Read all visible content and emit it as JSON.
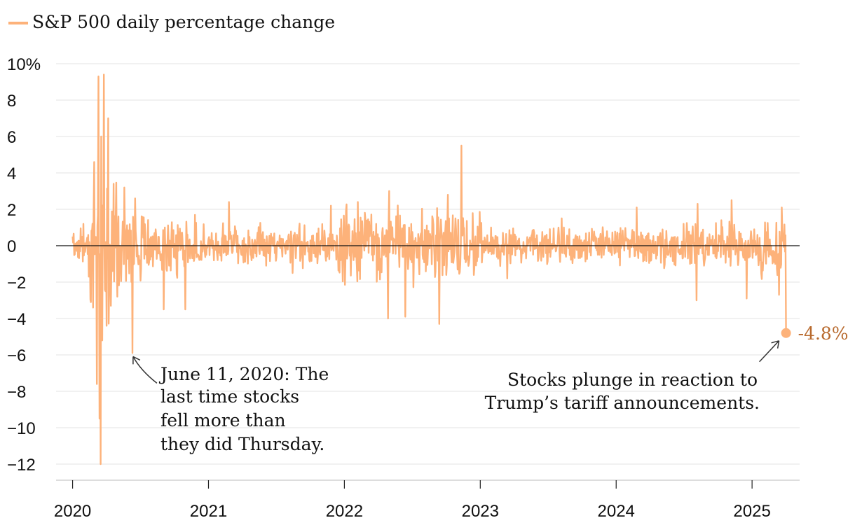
{
  "chart_data": {
    "type": "line",
    "legend": {
      "label": "S&P 500 daily percentage change",
      "color": "#fdb27a",
      "placement": "top-left"
    },
    "series": [
      {
        "name": "S&P 500 daily percentage change",
        "color": "#fdb27a",
        "anchors": [
          {
            "x": 2020.0,
            "y": 0.5
          },
          {
            "x": 2020.08,
            "y": 1.2
          },
          {
            "x": 2020.12,
            "y": -1.7
          },
          {
            "x": 2020.15,
            "y": -3.4
          },
          {
            "x": 2020.16,
            "y": 4.6
          },
          {
            "x": 2020.18,
            "y": -7.6
          },
          {
            "x": 2020.19,
            "y": 9.3
          },
          {
            "x": 2020.2,
            "y": -9.5
          },
          {
            "x": 2020.205,
            "y": -12.0
          },
          {
            "x": 2020.21,
            "y": 6.0
          },
          {
            "x": 2020.22,
            "y": -5.2
          },
          {
            "x": 2020.23,
            "y": 9.4
          },
          {
            "x": 2020.25,
            "y": -4.4
          },
          {
            "x": 2020.26,
            "y": 7.0
          },
          {
            "x": 2020.28,
            "y": -3.3
          },
          {
            "x": 2020.3,
            "y": 3.4
          },
          {
            "x": 2020.33,
            "y": -2.8
          },
          {
            "x": 2020.38,
            "y": 3.2
          },
          {
            "x": 2020.44,
            "y": -5.9
          },
          {
            "x": 2020.46,
            "y": 2.6
          },
          {
            "x": 2020.67,
            "y": -3.5
          },
          {
            "x": 2020.83,
            "y": -3.5
          },
          {
            "x": 2021.15,
            "y": 2.4
          },
          {
            "x": 2021.62,
            "y": -1.5
          },
          {
            "x": 2021.9,
            "y": 2.2
          },
          {
            "x": 2022.1,
            "y": 2.4
          },
          {
            "x": 2022.32,
            "y": -4.0
          },
          {
            "x": 2022.33,
            "y": 3.0
          },
          {
            "x": 2022.45,
            "y": -3.9
          },
          {
            "x": 2022.7,
            "y": -4.3
          },
          {
            "x": 2022.76,
            "y": 2.8
          },
          {
            "x": 2022.86,
            "y": 5.5
          },
          {
            "x": 2023.2,
            "y": -1.8
          },
          {
            "x": 2023.6,
            "y": 1.5
          },
          {
            "x": 2024.15,
            "y": 2.1
          },
          {
            "x": 2024.59,
            "y": -3.0
          },
          {
            "x": 2024.6,
            "y": 2.3
          },
          {
            "x": 2024.85,
            "y": 2.5
          },
          {
            "x": 2024.96,
            "y": -2.9
          },
          {
            "x": 2025.2,
            "y": -2.7
          },
          {
            "x": 2025.22,
            "y": 2.1
          },
          {
            "x": 2025.25,
            "y": -4.8
          }
        ]
      }
    ],
    "x_range": [
      2019.93,
      2025.35
    ],
    "ylim": [
      -12.6,
      10
    ],
    "x_ticks": [
      {
        "value": 2020,
        "label": "2020"
      },
      {
        "value": 2021,
        "label": "2021"
      },
      {
        "value": 2022,
        "label": "2022"
      },
      {
        "value": 2023,
        "label": "2023"
      },
      {
        "value": 2024,
        "label": "2024"
      },
      {
        "value": 2025,
        "label": "2025"
      }
    ],
    "y_ticks": [
      {
        "value": 10,
        "label": "10%"
      },
      {
        "value": 8,
        "label": "8"
      },
      {
        "value": 6,
        "label": "6"
      },
      {
        "value": 4,
        "label": "4"
      },
      {
        "value": 2,
        "label": "2"
      },
      {
        "value": 0,
        "label": "0"
      },
      {
        "value": -2,
        "label": "−2"
      },
      {
        "value": -4,
        "label": "−4"
      },
      {
        "value": -6,
        "label": "−6"
      },
      {
        "value": -8,
        "label": "−8"
      },
      {
        "value": -10,
        "label": "−10"
      },
      {
        "value": -12,
        "label": "−12"
      }
    ],
    "grid": true,
    "final_point": {
      "x": 2025.25,
      "y": -4.8,
      "label": "-4.8%",
      "color": "#b86a2e"
    },
    "annotations": [
      {
        "lines": [
          "June 11, 2020: The",
          "last time stocks",
          "fell  more than",
          "they did Thursday."
        ],
        "target": {
          "x": 2020.44,
          "y": -5.9
        }
      },
      {
        "lines": [
          "Stocks plunge in reaction to",
          "Trump’s tariff announcements."
        ],
        "target": {
          "x": 2025.25,
          "y": -4.8
        }
      }
    ]
  }
}
